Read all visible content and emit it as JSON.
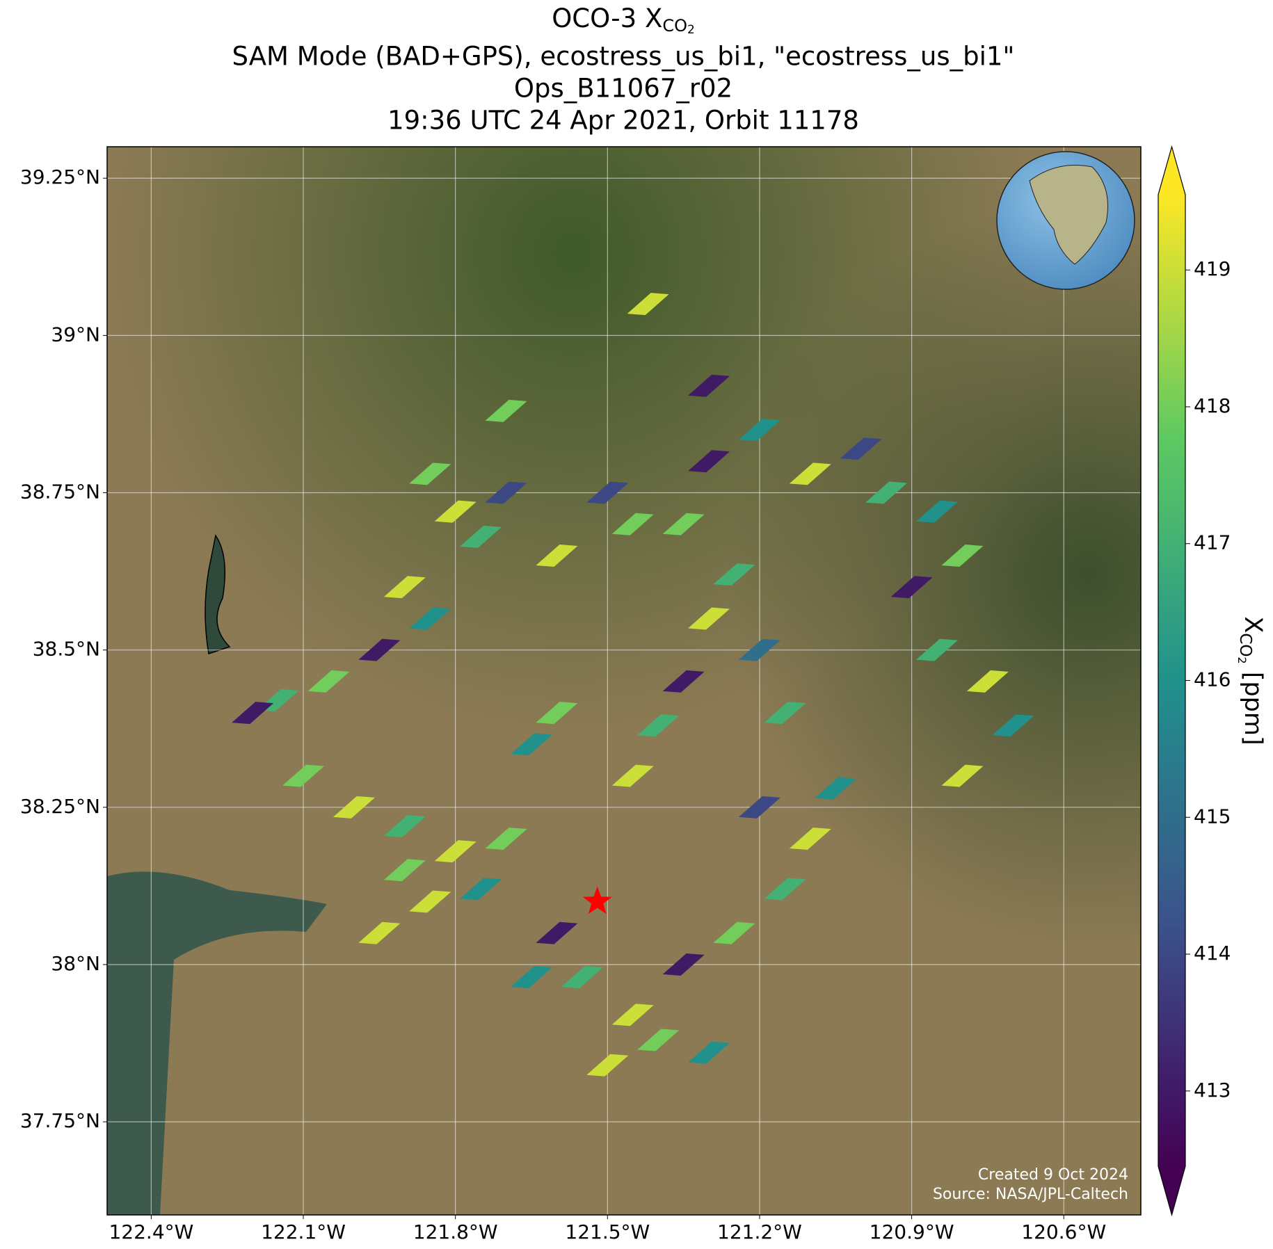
{
  "chart_data": {
    "type": "map",
    "title": {
      "prefix": "OCO-3 X",
      "sub": "CO",
      "subsub": "2"
    },
    "subtitle_lines": [
      "SAM Mode (BAD+GPS), ecostress_us_bi1, \"ecostress_us_bi1\"",
      "Ops_B11067_r02",
      "19:36 UTC 24 Apr 2021, Orbit 11178"
    ],
    "xlim": [
      -122.487,
      -120.448
    ],
    "ylim": [
      37.602,
      39.3
    ],
    "xticks": [
      {
        "value": -122.4,
        "label": "122.4°W"
      },
      {
        "value": -122.1,
        "label": "122.1°W"
      },
      {
        "value": -121.8,
        "label": "121.8°W"
      },
      {
        "value": -121.5,
        "label": "121.5°W"
      },
      {
        "value": -121.2,
        "label": "121.2°W"
      },
      {
        "value": -120.9,
        "label": "120.9°W"
      },
      {
        "value": -120.6,
        "label": "120.6°W"
      }
    ],
    "yticks": [
      {
        "value": 39.25,
        "label": "39.25°N"
      },
      {
        "value": 39.0,
        "label": "39°N"
      },
      {
        "value": 38.75,
        "label": "38.75°N"
      },
      {
        "value": 38.5,
        "label": "38.5°N"
      },
      {
        "value": 38.25,
        "label": "38.25°N"
      },
      {
        "value": 38.0,
        "label": "38°N"
      },
      {
        "value": 37.75,
        "label": "37.75°N"
      }
    ],
    "grid": true,
    "colormap": "viridis",
    "clim": [
      412.45,
      419.55
    ],
    "cticks": [
      413,
      414,
      415,
      416,
      417,
      418,
      419
    ],
    "colorbar_label": {
      "prefix": "X",
      "sub": "CO",
      "subsub": "2",
      "suffix": " [ppm]"
    },
    "target": {
      "lon": -121.52,
      "lat": 38.1,
      "color": "#ff0000"
    },
    "series": [
      {
        "lon": [
          -121.8,
          -121.75,
          -121.7,
          -121.85,
          -121.9,
          -121.85,
          -121.95,
          -122.05,
          -122.15,
          -122.2,
          -122.1,
          -122.0,
          -121.9,
          -121.8,
          -121.75,
          -121.7,
          -121.85,
          -121.6,
          -121.55,
          -121.45,
          -121.4,
          -121.3,
          -121.5,
          -121.35,
          -121.25,
          -121.15,
          -121.1,
          -121.05,
          -121.2,
          -121.45,
          -121.4,
          -121.35,
          -121.6,
          -121.65,
          -121.3,
          -121.25,
          -121.35,
          -121.3,
          -121.2,
          -121.1,
          -121.0,
          -120.95,
          -120.85,
          -120.8,
          -120.9,
          -120.85,
          -120.75,
          -120.7,
          -120.8,
          -121.45,
          -121.5,
          -121.6,
          -121.7,
          -121.3,
          -121.42,
          -121.2,
          -121.15,
          -121.9,
          -121.95,
          -121.65
        ],
        "lat": [
          38.72,
          38.68,
          38.75,
          38.78,
          38.6,
          38.55,
          38.5,
          38.45,
          38.42,
          38.4,
          38.3,
          38.25,
          38.22,
          38.18,
          38.12,
          38.2,
          38.1,
          38.05,
          37.98,
          37.92,
          37.88,
          37.86,
          37.84,
          38.0,
          38.05,
          38.12,
          38.2,
          38.28,
          38.25,
          38.3,
          38.38,
          38.45,
          38.4,
          38.35,
          38.55,
          38.62,
          38.7,
          38.8,
          38.85,
          38.78,
          38.82,
          38.75,
          38.72,
          38.65,
          38.6,
          38.5,
          38.45,
          38.38,
          38.3,
          38.7,
          38.75,
          38.65,
          38.88,
          38.92,
          39.05,
          38.5,
          38.4,
          38.15,
          38.05,
          37.98
        ],
        "values": [
          419,
          417,
          414,
          418,
          419,
          416,
          413,
          418,
          417,
          413,
          418,
          419,
          417,
          419,
          416,
          418,
          419,
          413,
          417,
          419,
          418,
          416,
          419,
          413,
          418,
          417,
          419,
          416,
          414,
          419,
          417,
          413,
          418,
          416,
          419,
          417,
          418,
          413,
          416,
          419,
          414,
          417,
          416,
          418,
          413,
          417,
          419,
          416,
          419,
          418,
          414,
          419,
          418,
          413,
          419,
          415,
          417,
          418,
          419,
          416
        ]
      }
    ],
    "credits": [
      "Created 9 Oct 2024",
      "Source: NASA/JPL-Caltech"
    ]
  }
}
